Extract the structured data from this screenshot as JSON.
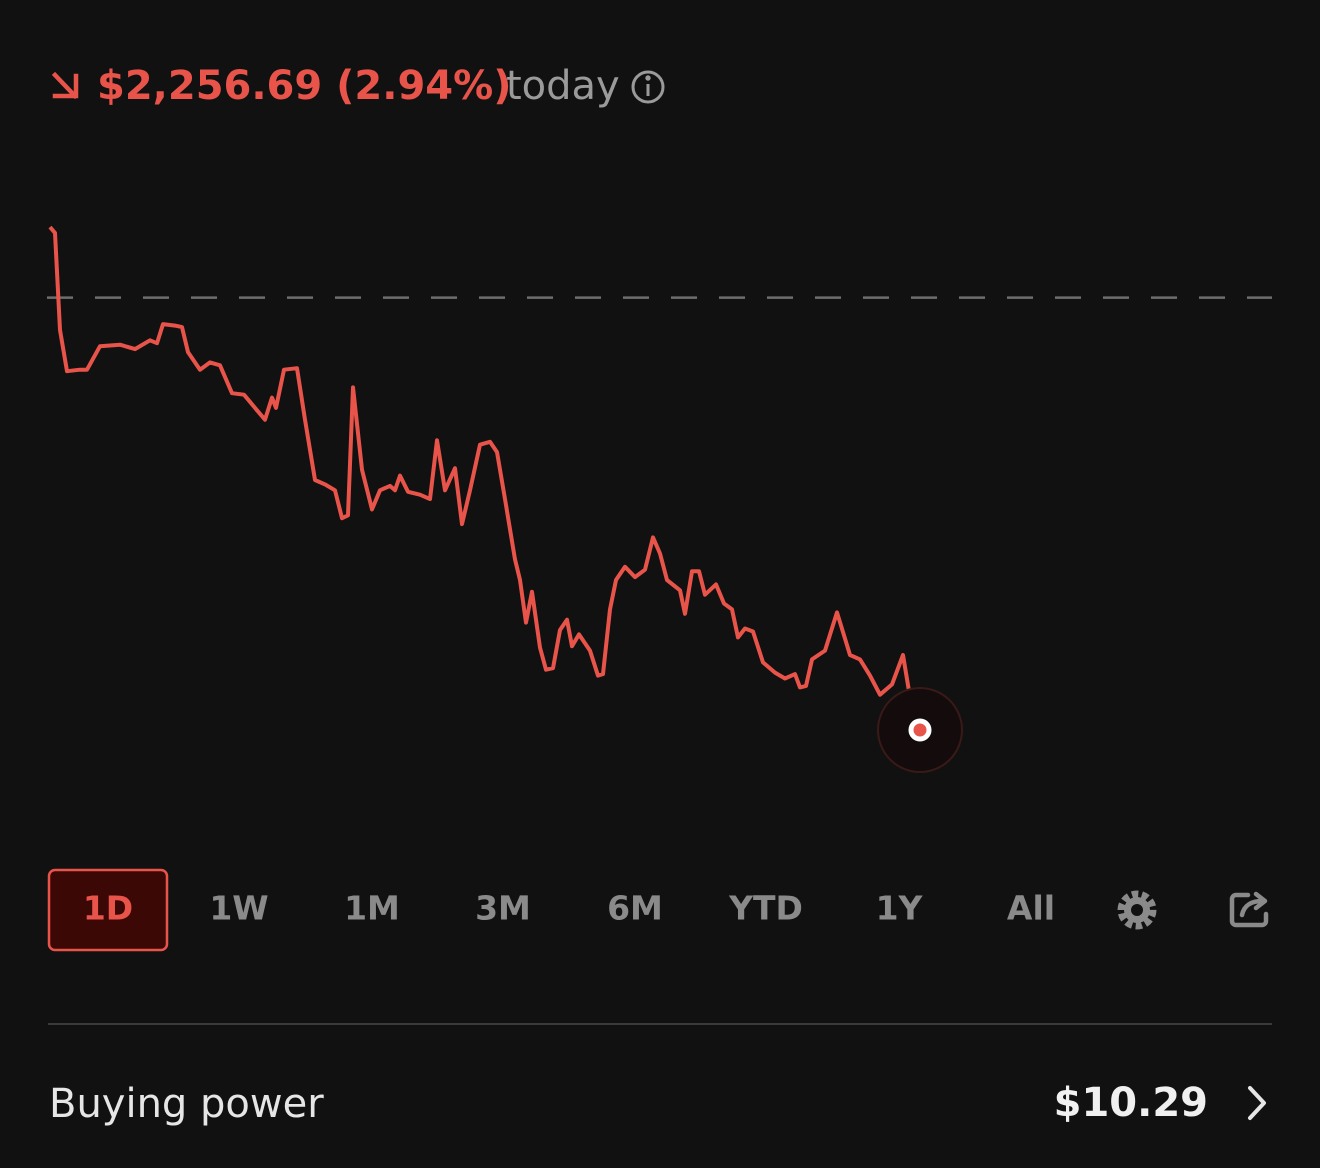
{
  "header": {
    "change": "$2,256.69 (2.94%)",
    "period": "today"
  },
  "chart_data": {
    "type": "line",
    "color": "#e8544a",
    "grid": false,
    "reference_line": 0,
    "xlim": [
      0,
      122.2
    ],
    "ylim": [
      -3.28,
      0.8
    ],
    "x": [
      0,
      0.5,
      1,
      1.7,
      3,
      3.7,
      5,
      7,
      8.5,
      10,
      10.7,
      11.3,
      12.5,
      13.2,
      13.8,
      15,
      16,
      17,
      18.2,
      19.4,
      20.5,
      21.5,
      22.2,
      22.6,
      23.4,
      24.7,
      25.5,
      26.5,
      27.5,
      28.5,
      29.2,
      29.8,
      30.3,
      31.2,
      32.2,
      33,
      34,
      34.5,
      35,
      35.8,
      37,
      38,
      38.7,
      39.5,
      40.5,
      41.2,
      42,
      43,
      44,
      44.7,
      45.5,
      46.5,
      47,
      47.6,
      48.2,
      49,
      49.6,
      50.3,
      51,
      51.7,
      52.2,
      52.9,
      54,
      54.8,
      55.3,
      56,
      56.6,
      57.5,
      58.5,
      59.5,
      60.3,
      61,
      61.7,
      63,
      63.5,
      64.2,
      64.9,
      65.5,
      66.6,
      67.4,
      68.2,
      68.8,
      69.5,
      70.3,
      71.3,
      72.5,
      73.5,
      74.5,
      75,
      75.6,
      76.2,
      77.5,
      78.7,
      80,
      81,
      82,
      83,
      84.2,
      85.3,
      86.3,
      87
    ],
    "values": [
      0.48,
      0.44,
      -0.22,
      -0.5,
      -0.49,
      -0.49,
      -0.33,
      -0.32,
      -0.35,
      -0.29,
      -0.31,
      -0.18,
      -0.19,
      -0.2,
      -0.37,
      -0.49,
      -0.44,
      -0.46,
      -0.65,
      -0.66,
      -0.75,
      -0.83,
      -0.68,
      -0.75,
      -0.49,
      -0.48,
      -0.83,
      -1.24,
      -1.27,
      -1.31,
      -1.5,
      -1.48,
      -0.61,
      -1.17,
      -1.44,
      -1.31,
      -1.28,
      -1.31,
      -1.21,
      -1.32,
      -1.34,
      -1.37,
      -0.97,
      -1.31,
      -1.16,
      -1.54,
      -1.31,
      -1.0,
      -0.98,
      -1.05,
      -1.37,
      -1.78,
      -1.92,
      -2.21,
      -2.0,
      -2.38,
      -2.53,
      -2.52,
      -2.26,
      -2.19,
      -2.37,
      -2.29,
      -2.4,
      -2.57,
      -2.56,
      -2.12,
      -1.92,
      -1.83,
      -1.9,
      -1.85,
      -1.63,
      -1.74,
      -1.92,
      -1.99,
      -2.15,
      -1.86,
      -1.86,
      -2.02,
      -1.95,
      -2.08,
      -2.12,
      -2.31,
      -2.25,
      -2.27,
      -2.48,
      -2.55,
      -2.59,
      -2.56,
      -2.65,
      -2.64,
      -2.46,
      -2.4,
      -2.14,
      -2.43,
      -2.46,
      -2.57,
      -2.7,
      -2.63,
      -2.43,
      -2.84,
      -2.94
    ]
  },
  "ranges": [
    "1D",
    "1W",
    "1M",
    "3M",
    "6M",
    "YTD",
    "1Y",
    "All"
  ],
  "buying_power": {
    "label": "Buying power",
    "value": "$10.29"
  }
}
